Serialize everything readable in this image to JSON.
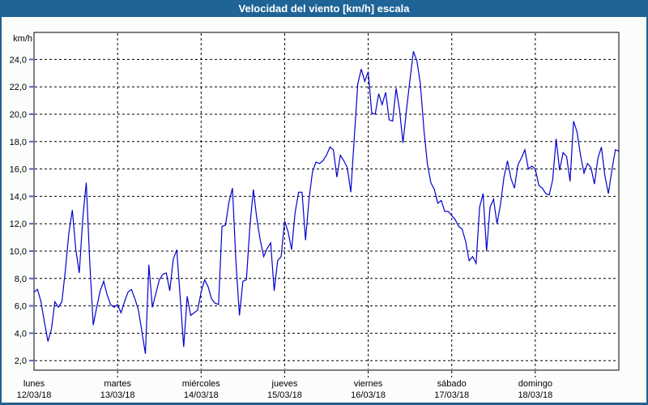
{
  "window": {
    "title": "Velocidad del viento [km/h] escala"
  },
  "colors": {
    "titlebar_bg": "#1e6496",
    "titlebar_text": "#ffffff",
    "frame_border": "#24608f",
    "page_bg": "#fbfdfb",
    "plot_bg": "#ffffff",
    "grid": "#000000",
    "axis": "#000000",
    "y_tick_marks": "#5566bb",
    "line": "#0202cc"
  },
  "chart_data": {
    "type": "line",
    "title": "Velocidad del viento [km/h] escala",
    "ylabel": "km/h",
    "xlabel": "",
    "ylim": [
      2,
      24
    ],
    "grid": "dashed horizontal and vertical (day boundaries)",
    "legend": "none",
    "yticks": [
      {
        "value": 24,
        "label": "24,0"
      },
      {
        "value": 22,
        "label": "22,0"
      },
      {
        "value": 20,
        "label": "20,0"
      },
      {
        "value": 18,
        "label": "18,0"
      },
      {
        "value": 16,
        "label": "16,0"
      },
      {
        "value": 14,
        "label": "14,0"
      },
      {
        "value": 12,
        "label": "12,0"
      },
      {
        "value": 10,
        "label": "10,0"
      },
      {
        "value": 8,
        "label": "8,0"
      },
      {
        "value": 6,
        "label": "6,0"
      },
      {
        "value": 4,
        "label": "4,0"
      },
      {
        "value": 2,
        "label": "2,0"
      }
    ],
    "x_days": [
      {
        "name": "lunes",
        "date": "12/03/18"
      },
      {
        "name": "martes",
        "date": "13/03/18"
      },
      {
        "name": "miércoles",
        "date": "14/03/18"
      },
      {
        "name": "jueves",
        "date": "15/03/18"
      },
      {
        "name": "viernes",
        "date": "16/03/18"
      },
      {
        "name": "sábado",
        "date": "17/03/18"
      },
      {
        "name": "domingo",
        "date": "18/03/18"
      }
    ],
    "x_unit": "hours (hourly samples, 7 days)",
    "series": [
      {
        "name": "velocidad del viento",
        "unit": "km/h",
        "values": [
          7.0,
          7.2,
          6.3,
          4.8,
          3.4,
          4.3,
          6.3,
          5.9,
          6.3,
          8.6,
          11.3,
          13.0,
          10.1,
          8.4,
          12.4,
          15.0,
          9.2,
          4.6,
          5.9,
          7.1,
          7.8,
          6.8,
          6.1,
          5.9,
          6.1,
          5.5,
          6.3,
          7.0,
          7.2,
          6.5,
          5.7,
          4.1,
          2.5,
          9.0,
          5.9,
          6.9,
          7.9,
          8.3,
          8.4,
          7.1,
          9.4,
          10.1,
          6.6,
          3.0,
          6.7,
          5.3,
          5.5,
          5.7,
          7.0,
          7.9,
          7.4,
          6.5,
          6.2,
          6.1,
          11.8,
          11.9,
          13.6,
          14.6,
          9.2,
          5.3,
          7.8,
          7.9,
          11.8,
          14.5,
          12.4,
          10.8,
          9.6,
          10.2,
          10.6,
          7.1,
          9.3,
          9.6,
          12.2,
          11.4,
          10.1,
          12.8,
          14.3,
          14.3,
          10.8,
          13.8,
          15.8,
          16.5,
          16.4,
          16.6,
          17.0,
          17.6,
          17.4,
          15.4,
          17.0,
          16.6,
          16.1,
          14.3,
          18.3,
          22.2,
          23.3,
          22.4,
          23.1,
          20.1,
          20.0,
          21.5,
          20.7,
          21.6,
          19.6,
          19.5,
          21.9,
          20.3,
          17.9,
          20.3,
          22.5,
          24.6,
          23.9,
          22.2,
          18.9,
          16.4,
          15.0,
          14.5,
          13.5,
          13.7,
          12.9,
          12.9,
          12.6,
          12.3,
          11.8,
          11.6,
          10.7,
          9.3,
          9.6,
          9.1,
          13.2,
          14.2,
          10.0,
          13.2,
          13.8,
          12.0,
          13.4,
          15.4,
          16.6,
          15.3,
          14.6,
          16.3,
          16.8,
          17.4,
          16.0,
          16.2,
          16.0,
          14.8,
          14.6,
          14.2,
          14.1,
          15.2,
          18.2,
          15.9,
          17.2,
          16.9,
          15.1,
          19.5,
          18.7,
          17.0,
          15.7,
          16.4,
          16.1,
          14.9,
          16.8,
          17.6,
          15.5,
          14.2,
          15.9,
          17.4,
          17.3
        ]
      }
    ]
  }
}
